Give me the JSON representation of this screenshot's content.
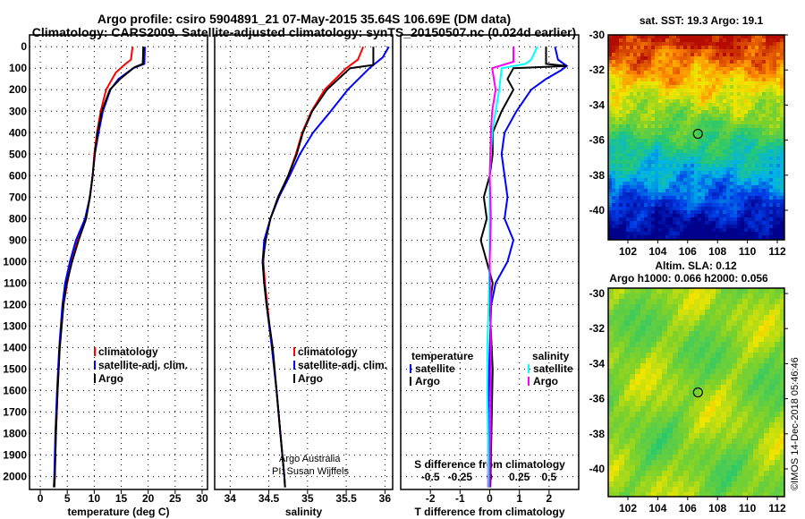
{
  "title_line1": "Argo profile: csiro 5904891_21 07-May-2015 35.64S 106.69E (DM data)",
  "title_line2": "Climatology: CARS2009. Satellite-adjusted climatology: synTS_20150507.nc (0.024d earlier)",
  "watermark": "©IMOS 14-Dec-2018 05:46:46",
  "credit": [
    "Argo Australia",
    "PI: Susan Wijffels"
  ],
  "colors": {
    "climatology": "#ff0000",
    "satellite": "#0000ff",
    "argo": "#000000",
    "sal_satellite": "#00ffff",
    "sal_argo": "#ff00ff"
  },
  "chart_data": [
    {
      "type": "line",
      "xlabel": "temperature (deg C)",
      "ylabel": "depth",
      "xlim": [
        -2,
        31
      ],
      "ylim": [
        2060,
        -55
      ],
      "xticks": [
        0,
        5,
        10,
        15,
        20,
        25,
        30
      ],
      "yticks": [
        0,
        100,
        200,
        300,
        400,
        500,
        600,
        700,
        800,
        900,
        1000,
        1100,
        1200,
        1300,
        1400,
        1500,
        1600,
        1700,
        1800,
        1900,
        2000
      ],
      "legend": [
        "climatology",
        "satellite-adj. clim.",
        "Argo"
      ],
      "series": [
        {
          "name": "climatology",
          "color": "#ff0000",
          "points": [
            [
              0,
              17.1
            ],
            [
              60,
              16.8
            ],
            [
              80,
              15.8
            ],
            [
              120,
              14
            ],
            [
              200,
              12.2
            ],
            [
              300,
              11.2
            ],
            [
              400,
              10.5
            ],
            [
              500,
              10
            ],
            [
              600,
              9.7
            ],
            [
              700,
              9.2
            ],
            [
              800,
              8.4
            ],
            [
              900,
              6.9
            ],
            [
              1000,
              5.8
            ],
            [
              1100,
              5
            ],
            [
              1200,
              4.3
            ],
            [
              1400,
              3.6
            ],
            [
              1600,
              3.2
            ],
            [
              1800,
              2.9
            ],
            [
              2000,
              2.7
            ],
            [
              2050,
              2.6
            ]
          ]
        },
        {
          "name": "satellite-adj. clim.",
          "color": "#0000ff",
          "points": [
            [
              0,
              19.4
            ],
            [
              80,
              19.3
            ],
            [
              100,
              17.2
            ],
            [
              150,
              14.5
            ],
            [
              200,
              13
            ],
            [
              300,
              11.6
            ],
            [
              400,
              10.8
            ],
            [
              500,
              10.1
            ],
            [
              600,
              9.7
            ],
            [
              700,
              9.2
            ],
            [
              800,
              8.3
            ],
            [
              900,
              6.6
            ],
            [
              1000,
              5.5
            ],
            [
              1100,
              4.6
            ],
            [
              1200,
              4.1
            ],
            [
              1400,
              3.5
            ],
            [
              1600,
              3.1
            ],
            [
              1800,
              2.8
            ],
            [
              2000,
              2.6
            ],
            [
              2050,
              2.5
            ]
          ]
        },
        {
          "name": "Argo",
          "color": "#000000",
          "points": [
            [
              0,
              19.1
            ],
            [
              80,
              19
            ],
            [
              95,
              17.5
            ],
            [
              150,
              14.8
            ],
            [
              200,
              12.9
            ],
            [
              300,
              11.4
            ],
            [
              400,
              10.6
            ],
            [
              500,
              10.1
            ],
            [
              600,
              9.7
            ],
            [
              700,
              9.2
            ],
            [
              800,
              8.5
            ],
            [
              900,
              7.1
            ],
            [
              1000,
              5.9
            ],
            [
              1100,
              4.9
            ],
            [
              1200,
              4.3
            ],
            [
              1400,
              3.6
            ],
            [
              1600,
              3.2
            ],
            [
              1800,
              2.9
            ],
            [
              2000,
              2.7
            ],
            [
              2050,
              2.6
            ]
          ]
        }
      ]
    },
    {
      "type": "line",
      "xlabel": "salinity",
      "ylabel": "depth",
      "xlim": [
        33.8,
        36.1
      ],
      "ylim": [
        2060,
        -55
      ],
      "xticks": [
        34,
        34.5,
        35,
        35.5,
        36
      ],
      "legend": [
        "climatology",
        "satellite-adj. clim.",
        "Argo"
      ],
      "series": [
        {
          "name": "climatology",
          "color": "#ff0000",
          "points": [
            [
              0,
              35.72
            ],
            [
              60,
              35.65
            ],
            [
              100,
              35.5
            ],
            [
              200,
              35.22
            ],
            [
              300,
              35.05
            ],
            [
              400,
              34.93
            ],
            [
              500,
              34.85
            ],
            [
              600,
              34.75
            ],
            [
              700,
              34.63
            ],
            [
              800,
              34.52
            ],
            [
              900,
              34.45
            ],
            [
              1000,
              34.43
            ],
            [
              1100,
              34.45
            ],
            [
              1200,
              34.48
            ],
            [
              1400,
              34.54
            ],
            [
              1600,
              34.6
            ],
            [
              1800,
              34.65
            ],
            [
              2000,
              34.7
            ],
            [
              2050,
              34.71
            ]
          ]
        },
        {
          "name": "satellite-adj. clim.",
          "color": "#0000ff",
          "points": [
            [
              0,
              36.05
            ],
            [
              50,
              35.97
            ],
            [
              100,
              35.8
            ],
            [
              200,
              35.52
            ],
            [
              300,
              35.3
            ],
            [
              400,
              35.07
            ],
            [
              500,
              34.9
            ],
            [
              600,
              34.77
            ],
            [
              700,
              34.63
            ],
            [
              800,
              34.52
            ],
            [
              900,
              34.44
            ],
            [
              1000,
              34.42
            ],
            [
              1100,
              34.44
            ],
            [
              1200,
              34.47
            ],
            [
              1400,
              34.54
            ],
            [
              1600,
              34.6
            ],
            [
              1800,
              34.65
            ],
            [
              2000,
              34.7
            ],
            [
              2050,
              34.71
            ]
          ]
        },
        {
          "name": "Argo",
          "color": "#000000",
          "points": [
            [
              0,
              35.85
            ],
            [
              85,
              35.85
            ],
            [
              100,
              35.55
            ],
            [
              200,
              35.25
            ],
            [
              300,
              35.06
            ],
            [
              400,
              34.94
            ],
            [
              500,
              34.86
            ],
            [
              600,
              34.75
            ],
            [
              700,
              34.62
            ],
            [
              800,
              34.52
            ],
            [
              900,
              34.46
            ],
            [
              1000,
              34.42
            ],
            [
              1100,
              34.44
            ],
            [
              1200,
              34.47
            ],
            [
              1400,
              34.55
            ],
            [
              1600,
              34.6
            ],
            [
              1800,
              34.65
            ],
            [
              2000,
              34.7
            ],
            [
              2050,
              34.71
            ]
          ]
        }
      ]
    },
    {
      "type": "line",
      "xlabel": "T difference from climatology",
      "x2label": "S difference from climatology",
      "xlim": [
        -3,
        3
      ],
      "x2lim": [
        -0.75,
        0.75
      ],
      "ylim": [
        2060,
        -55
      ],
      "xticks": [
        -2,
        -1,
        0,
        1,
        2
      ],
      "x2ticks": [
        "-0.5",
        "-0.25",
        "0",
        "0.25",
        "0.5"
      ],
      "legend_titles": [
        "temperature",
        "salinity"
      ],
      "legend_temperature": [
        "satellite",
        "Argo"
      ],
      "legend_salinity": [
        "satellite",
        "Argo"
      ],
      "series": [
        {
          "name": "temperature satellite",
          "color": "#0000ff",
          "axis": "T",
          "points": [
            [
              0,
              2.2
            ],
            [
              60,
              2.3
            ],
            [
              90,
              2.6
            ],
            [
              110,
              2.4
            ],
            [
              150,
              1.9
            ],
            [
              200,
              1.4
            ],
            [
              300,
              0.9
            ],
            [
              400,
              0.5
            ],
            [
              500,
              0.4
            ],
            [
              600,
              0.5
            ],
            [
              700,
              0.6
            ],
            [
              800,
              0.5
            ],
            [
              900,
              0.8
            ],
            [
              1000,
              0.6
            ],
            [
              1100,
              0.2
            ],
            [
              1200,
              0.05
            ],
            [
              1400,
              0
            ],
            [
              1700,
              -0.05
            ],
            [
              2050,
              -0.05
            ]
          ]
        },
        {
          "name": "temperature Argo",
          "color": "#000000",
          "axis": "T",
          "points": [
            [
              0,
              1.9
            ],
            [
              80,
              1.9
            ],
            [
              90,
              2.6
            ],
            [
              100,
              0.8
            ],
            [
              150,
              0.6
            ],
            [
              200,
              0.8
            ],
            [
              300,
              0.4
            ],
            [
              400,
              0.1
            ],
            [
              500,
              0.1
            ],
            [
              600,
              0
            ],
            [
              700,
              -0.2
            ],
            [
              800,
              -0.1
            ],
            [
              900,
              -0.3
            ],
            [
              1000,
              -0.1
            ],
            [
              1100,
              0.1
            ],
            [
              1200,
              0
            ],
            [
              1500,
              0.1
            ],
            [
              2050,
              0.02
            ]
          ]
        },
        {
          "name": "salinity satellite",
          "color": "#00ffff",
          "axis": "S",
          "points": [
            [
              0,
              0.4
            ],
            [
              60,
              0.35
            ],
            [
              80,
              0.3
            ],
            [
              100,
              0.1
            ],
            [
              200,
              0.08
            ],
            [
              300,
              0.05
            ],
            [
              400,
              0.02
            ],
            [
              600,
              0
            ],
            [
              800,
              0
            ],
            [
              1000,
              0
            ],
            [
              1200,
              -0.01
            ],
            [
              1400,
              -0.02
            ],
            [
              1600,
              -0.02
            ],
            [
              2050,
              -0.01
            ]
          ]
        },
        {
          "name": "salinity Argo",
          "color": "#ff00ff",
          "axis": "S",
          "points": [
            [
              0,
              0.2
            ],
            [
              70,
              0.2
            ],
            [
              100,
              0.02
            ],
            [
              200,
              0.05
            ],
            [
              300,
              0.02
            ],
            [
              400,
              0.01
            ],
            [
              600,
              0
            ],
            [
              800,
              0.01
            ],
            [
              1000,
              0
            ],
            [
              1400,
              0.01
            ],
            [
              2050,
              0
            ]
          ]
        }
      ]
    }
  ],
  "maps": [
    {
      "title": "sat. SST: 19.3 Argo: 19.1",
      "xticks": [
        "102",
        "104",
        "106",
        "108",
        "110",
        "112"
      ],
      "yticks": [
        "-30",
        "-32",
        "-34",
        "-36",
        "-38",
        "-40"
      ],
      "marker": [
        106.69,
        -35.64
      ]
    },
    {
      "title": "Altim. SLA: 0.12",
      "subtitle": "Argo h1000: 0.066 h2000: 0.056",
      "xticks": [
        "102",
        "104",
        "106",
        "108",
        "110",
        "112"
      ],
      "yticks": [
        "-30",
        "-32",
        "-34",
        "-36",
        "-38",
        "-40"
      ],
      "marker": [
        106.69,
        -35.64
      ]
    }
  ]
}
